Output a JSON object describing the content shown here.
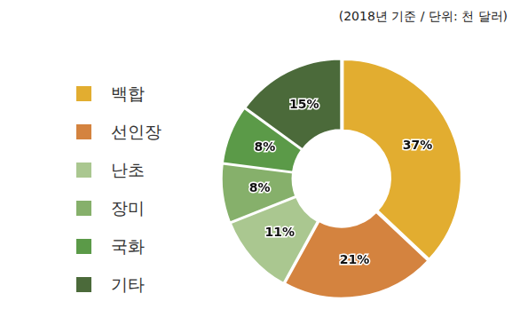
{
  "chart_data": {
    "type": "doughnut",
    "subtitle": "(2018년 기준 / 단위: 천 달러)",
    "categories": [
      "백합",
      "선인장",
      "난초",
      "장미",
      "국화",
      "기타"
    ],
    "values": [
      37,
      21,
      11,
      8,
      8,
      15
    ],
    "value_labels": [
      "37%",
      "21%",
      "11%",
      "8%",
      "8%",
      "15%"
    ],
    "colors": [
      "#e2ad30",
      "#d4833f",
      "#aac790",
      "#86b06b",
      "#5b9a48",
      "#4b6a3a"
    ],
    "data_labels": true,
    "legend": "left"
  }
}
